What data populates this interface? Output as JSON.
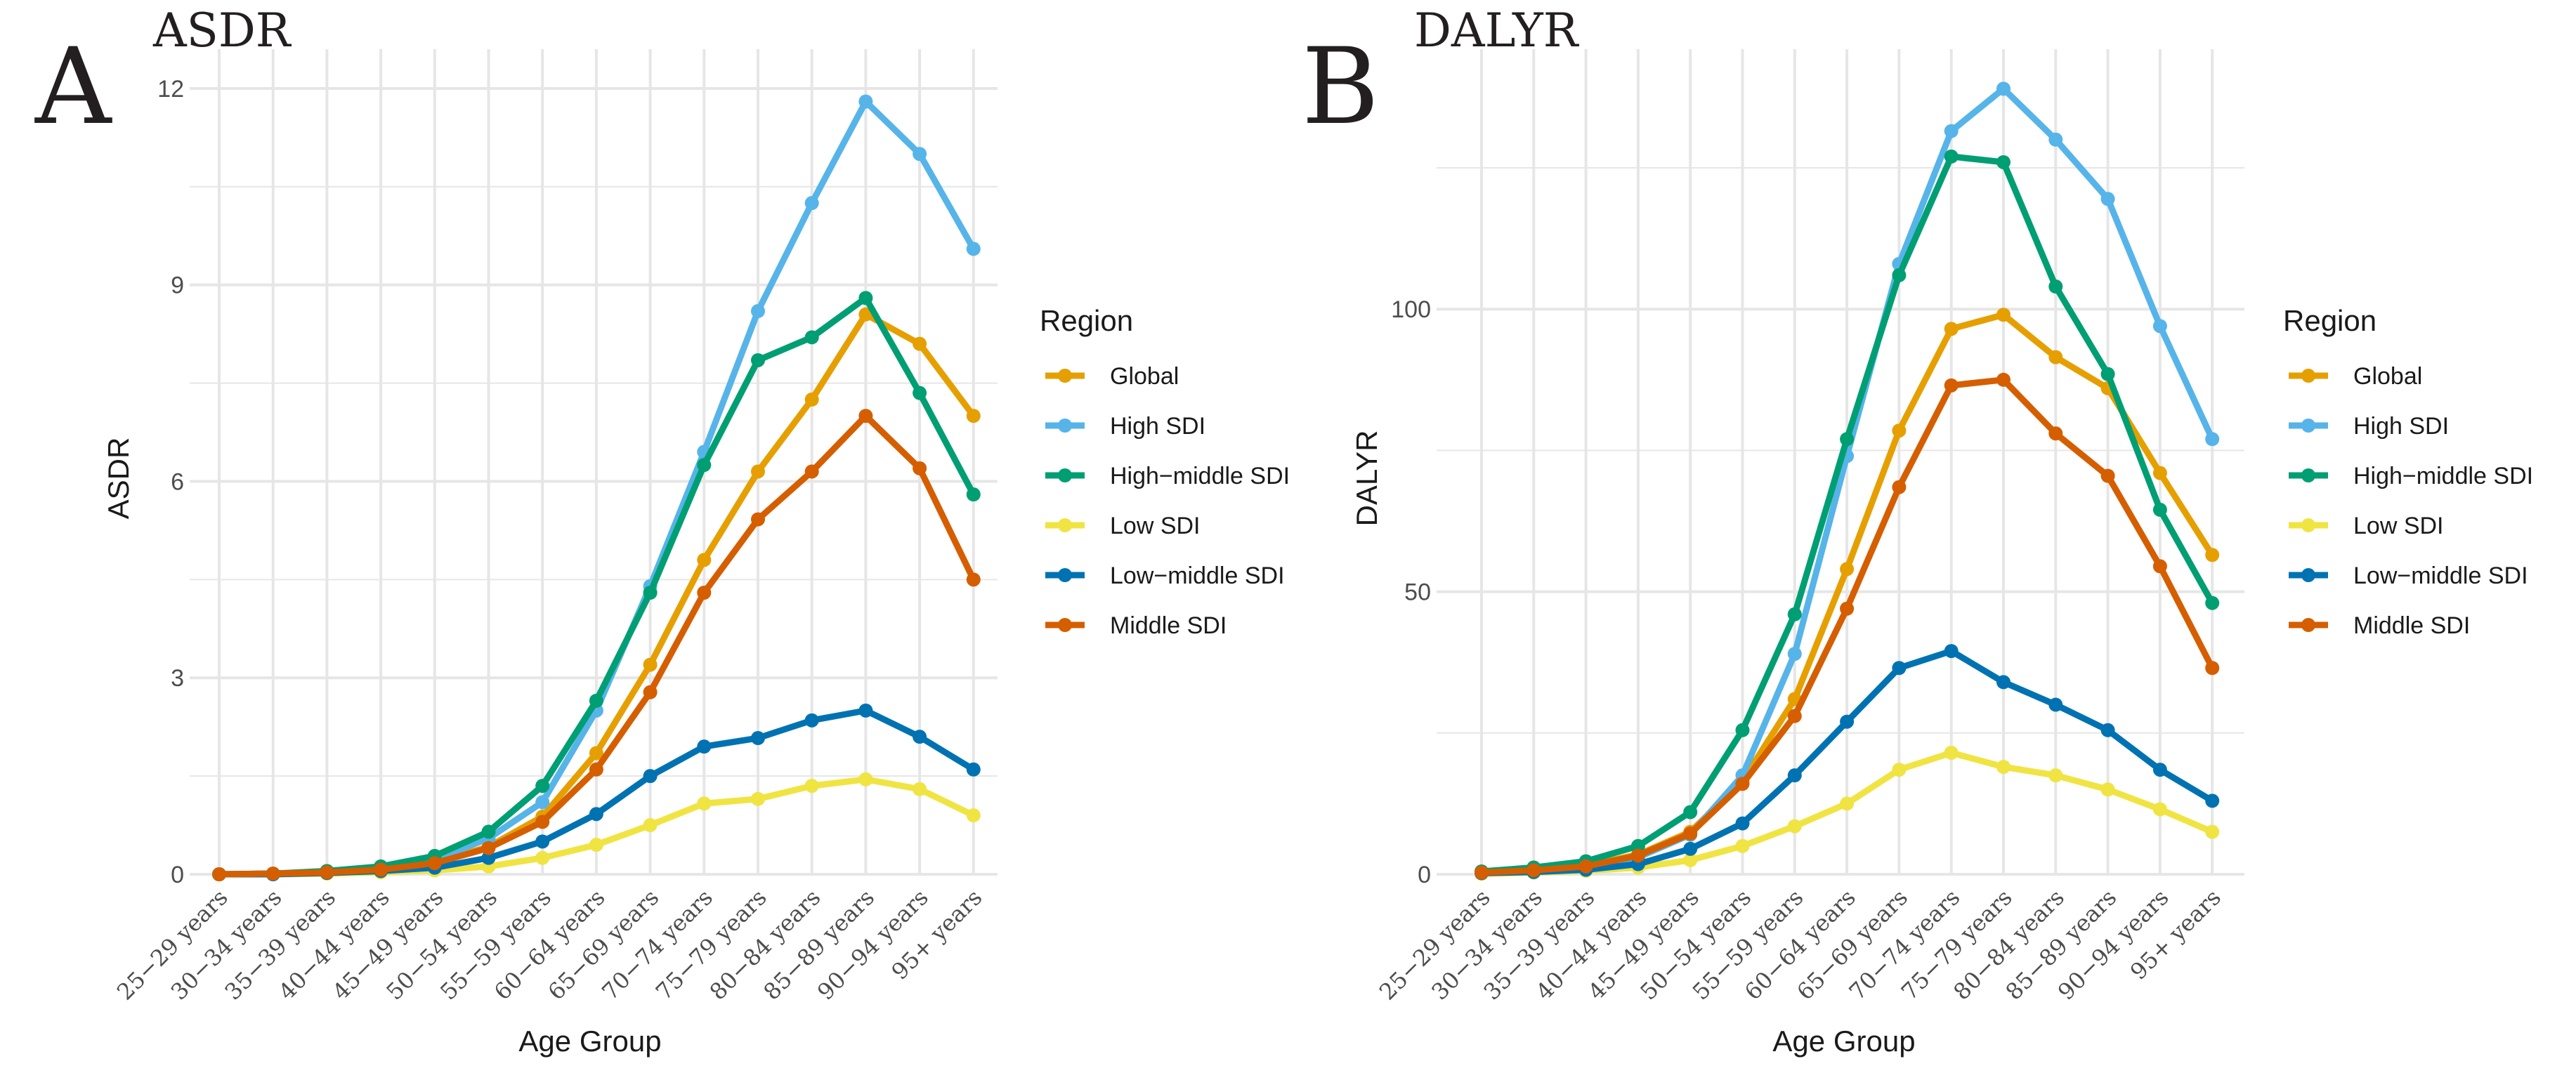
{
  "chart_data": [
    {
      "panel_letter": "A",
      "title": "ASDR",
      "type": "line",
      "xlabel": "Age Group",
      "ylabel": "ASDR",
      "ylim": [
        0,
        12.6
      ],
      "yticks": [
        0,
        3,
        6,
        9,
        12
      ],
      "ytick_labels": [
        "0",
        "3",
        "6",
        "9",
        "12"
      ],
      "legend_title": "Region",
      "legend_position": "right",
      "categories": [
        "25−29 years",
        "30−34 years",
        "35−39 years",
        "40−44 years",
        "45−49 years",
        "50−54 years",
        "55−59 years",
        "60−64 years",
        "65−69 years",
        "70−74 years",
        "75−79 years",
        "80−84 years",
        "85−89 years",
        "90−94 years",
        "95+ years"
      ],
      "series": [
        {
          "name": "Global",
          "color": "#E69F00",
          "values": [
            0.0,
            0.01,
            0.03,
            0.07,
            0.18,
            0.42,
            0.88,
            1.85,
            3.2,
            4.8,
            6.15,
            7.25,
            8.55,
            8.1,
            7.0
          ]
        },
        {
          "name": "High SDI",
          "color": "#56B4E9",
          "values": [
            0.0,
            0.01,
            0.04,
            0.09,
            0.22,
            0.55,
            1.1,
            2.5,
            4.4,
            6.45,
            8.6,
            10.25,
            11.8,
            11.0,
            9.55
          ]
        },
        {
          "name": "High−middle SDI",
          "color": "#009E73",
          "values": [
            0.0,
            0.01,
            0.05,
            0.12,
            0.28,
            0.65,
            1.35,
            2.65,
            4.3,
            6.25,
            7.85,
            8.2,
            8.8,
            7.35,
            5.8
          ]
        },
        {
          "name": "Low SDI",
          "color": "#F0E442",
          "values": [
            0.0,
            0.0,
            0.01,
            0.03,
            0.06,
            0.12,
            0.25,
            0.45,
            0.75,
            1.08,
            1.15,
            1.35,
            1.45,
            1.3,
            0.9
          ]
        },
        {
          "name": "Low−middle SDI",
          "color": "#0072B2",
          "values": [
            0.0,
            0.0,
            0.02,
            0.05,
            0.1,
            0.25,
            0.5,
            0.92,
            1.5,
            1.95,
            2.08,
            2.35,
            2.5,
            2.1,
            1.6
          ]
        },
        {
          "name": "Middle SDI",
          "color": "#D55E00",
          "values": [
            0.0,
            0.01,
            0.03,
            0.07,
            0.17,
            0.4,
            0.8,
            1.6,
            2.78,
            4.3,
            5.42,
            6.15,
            7.0,
            6.2,
            4.5
          ]
        }
      ]
    },
    {
      "panel_letter": "B",
      "title": "DALYR",
      "type": "line",
      "xlabel": "Age Group",
      "ylabel": "DALYR",
      "ylim": [
        0,
        146
      ],
      "yticks": [
        0,
        50,
        100
      ],
      "ytick_labels": [
        "0",
        "50",
        "100"
      ],
      "legend_title": "Region",
      "legend_position": "right",
      "categories": [
        "25−29 years",
        "30−34 years",
        "35−39 years",
        "40−44 years",
        "45−49 years",
        "50−54 years",
        "55−59 years",
        "60−64 years",
        "65−69 years",
        "70−74 years",
        "75−79 years",
        "80−84 years",
        "85−89 years",
        "90−94 years",
        "95+ years"
      ],
      "series": [
        {
          "name": "Global",
          "color": "#E69F00",
          "values": [
            0.3,
            0.8,
            1.5,
            3.5,
            7.5,
            16.5,
            31.0,
            54.0,
            78.5,
            96.5,
            99.0,
            91.5,
            86.0,
            71.0,
            56.5
          ]
        },
        {
          "name": "High SDI",
          "color": "#56B4E9",
          "values": [
            0.2,
            0.5,
            1.2,
            3.0,
            7.0,
            17.5,
            39.0,
            74.0,
            108.0,
            131.5,
            139.0,
            130.0,
            119.5,
            97.0,
            77.0
          ]
        },
        {
          "name": "High−middle SDI",
          "color": "#009E73",
          "values": [
            0.5,
            1.2,
            2.3,
            5.0,
            11.0,
            25.5,
            46.0,
            77.0,
            106.0,
            127.0,
            126.0,
            104.0,
            88.5,
            64.5,
            48.0
          ]
        },
        {
          "name": "Low SDI",
          "color": "#F0E442",
          "values": [
            0.1,
            0.3,
            0.6,
            1.2,
            2.5,
            5.0,
            8.5,
            12.5,
            18.5,
            21.5,
            19.0,
            17.5,
            15.0,
            11.5,
            7.5
          ]
        },
        {
          "name": "Low−middle SDI",
          "color": "#0072B2",
          "values": [
            0.2,
            0.4,
            0.8,
            1.8,
            4.5,
            9.0,
            17.5,
            27.0,
            36.5,
            39.5,
            34.0,
            30.0,
            25.5,
            18.5,
            13.0
          ]
        },
        {
          "name": "Middle SDI",
          "color": "#D55E00",
          "values": [
            0.3,
            0.7,
            1.4,
            3.3,
            7.2,
            16.0,
            28.0,
            47.0,
            68.5,
            86.5,
            87.5,
            78.0,
            70.5,
            54.5,
            36.5
          ]
        }
      ]
    }
  ]
}
